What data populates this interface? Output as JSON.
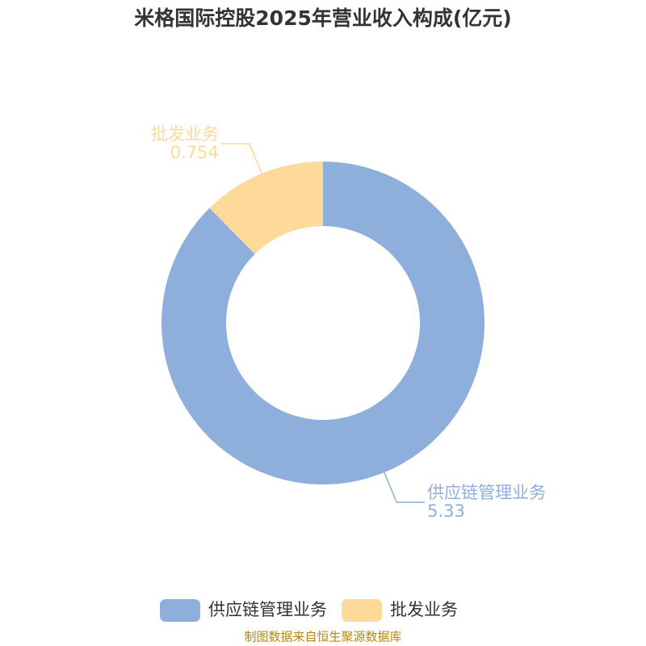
{
  "chart_data": {
    "type": "donut",
    "title": "米格国际控股2025年营业收入构成(亿元)",
    "categories": [
      "供应链管理业务",
      "批发业务"
    ],
    "values": [
      5.33,
      0.754
    ],
    "colors": [
      "#8eaedb",
      "#fdd99a"
    ],
    "legend": "bottom",
    "source": "制图数据来自恒生聚源数据库"
  }
}
